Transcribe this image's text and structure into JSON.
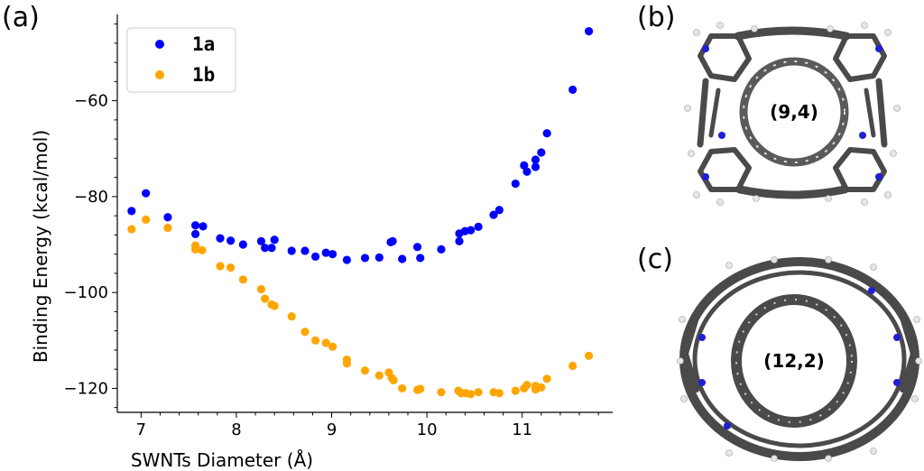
{
  "panels": {
    "a": "(a)",
    "b": "(b)",
    "c": "(c)"
  },
  "molecules": {
    "b_label": "(9,4)",
    "c_label": "(12,2)"
  },
  "colors": {
    "series_1a": "#0000ff",
    "series_1b": "#ffa500",
    "atom_carbon": "#555555",
    "atom_nitrogen": "#1f1fd6",
    "atom_hydrogen": "#e6e6e6"
  },
  "chart_data": {
    "type": "scatter",
    "title": "",
    "xlabel": "SWNTs Diameter (Å)",
    "ylabel": "Binding Energy (kcal/mol)",
    "xlim": [
      6.75,
      11.95
    ],
    "ylim": [
      -125,
      -42
    ],
    "xticks": [
      7,
      8,
      9,
      10,
      11
    ],
    "yticks": [
      -120,
      -100,
      -80,
      -60
    ],
    "grid": false,
    "legend_position": "top-left",
    "series": [
      {
        "name": "1a",
        "color": "#0000ff",
        "points": [
          [
            6.9,
            -83.0
          ],
          [
            7.05,
            -79.3
          ],
          [
            7.28,
            -84.3
          ],
          [
            7.57,
            -86.0
          ],
          [
            7.57,
            -87.8
          ],
          [
            7.65,
            -86.2
          ],
          [
            7.83,
            -88.7
          ],
          [
            7.94,
            -89.2
          ],
          [
            8.07,
            -90.0
          ],
          [
            8.26,
            -89.3
          ],
          [
            8.3,
            -90.7
          ],
          [
            8.37,
            -90.7
          ],
          [
            8.4,
            -89.0
          ],
          [
            8.58,
            -91.3
          ],
          [
            8.72,
            -91.3
          ],
          [
            8.83,
            -92.5
          ],
          [
            8.94,
            -91.7
          ],
          [
            9.01,
            -92.0
          ],
          [
            9.16,
            -93.2
          ],
          [
            9.35,
            -92.8
          ],
          [
            9.5,
            -92.7
          ],
          [
            9.62,
            -89.5
          ],
          [
            9.64,
            -89.3
          ],
          [
            9.74,
            -93.0
          ],
          [
            9.9,
            -90.5
          ],
          [
            9.93,
            -92.8
          ],
          [
            10.15,
            -91.0
          ],
          [
            10.34,
            -89.3
          ],
          [
            10.34,
            -87.7
          ],
          [
            10.4,
            -87.2
          ],
          [
            10.46,
            -87.0
          ],
          [
            10.54,
            -86.3
          ],
          [
            10.7,
            -83.8
          ],
          [
            10.76,
            -82.8
          ],
          [
            10.93,
            -77.3
          ],
          [
            11.02,
            -73.5
          ],
          [
            11.05,
            -74.8
          ],
          [
            11.14,
            -73.8
          ],
          [
            11.14,
            -72.3
          ],
          [
            11.2,
            -70.8
          ],
          [
            11.26,
            -66.8
          ],
          [
            11.53,
            -57.7
          ],
          [
            11.7,
            -45.5
          ]
        ]
      },
      {
        "name": "1b",
        "color": "#ffa500",
        "points": [
          [
            6.9,
            -86.8
          ],
          [
            7.05,
            -84.8
          ],
          [
            7.28,
            -86.5
          ],
          [
            7.57,
            -90.2
          ],
          [
            7.57,
            -91.0
          ],
          [
            7.64,
            -91.2
          ],
          [
            7.83,
            -94.5
          ],
          [
            7.94,
            -94.8
          ],
          [
            8.07,
            -97.3
          ],
          [
            8.26,
            -99.3
          ],
          [
            8.3,
            -101.3
          ],
          [
            8.37,
            -102.5
          ],
          [
            8.4,
            -102.8
          ],
          [
            8.58,
            -105.0
          ],
          [
            8.72,
            -108.2
          ],
          [
            8.83,
            -110.0
          ],
          [
            8.94,
            -110.5
          ],
          [
            9.01,
            -111.3
          ],
          [
            9.16,
            -114.0
          ],
          [
            9.16,
            -114.8
          ],
          [
            9.35,
            -116.3
          ],
          [
            9.5,
            -117.3
          ],
          [
            9.6,
            -116.7
          ],
          [
            9.63,
            -117.8
          ],
          [
            9.65,
            -118.3
          ],
          [
            9.74,
            -120.0
          ],
          [
            9.9,
            -120.3
          ],
          [
            9.93,
            -120.1
          ],
          [
            10.15,
            -120.8
          ],
          [
            10.33,
            -120.5
          ],
          [
            10.36,
            -121.0
          ],
          [
            10.41,
            -121.0
          ],
          [
            10.46,
            -121.2
          ],
          [
            10.54,
            -120.8
          ],
          [
            10.7,
            -120.8
          ],
          [
            10.76,
            -121.0
          ],
          [
            10.93,
            -120.5
          ],
          [
            11.02,
            -120.0
          ],
          [
            11.05,
            -119.3
          ],
          [
            11.14,
            -120.2
          ],
          [
            11.14,
            -119.5
          ],
          [
            11.2,
            -119.8
          ],
          [
            11.26,
            -118.0
          ],
          [
            11.53,
            -115.3
          ],
          [
            11.7,
            -113.2
          ]
        ]
      }
    ]
  }
}
